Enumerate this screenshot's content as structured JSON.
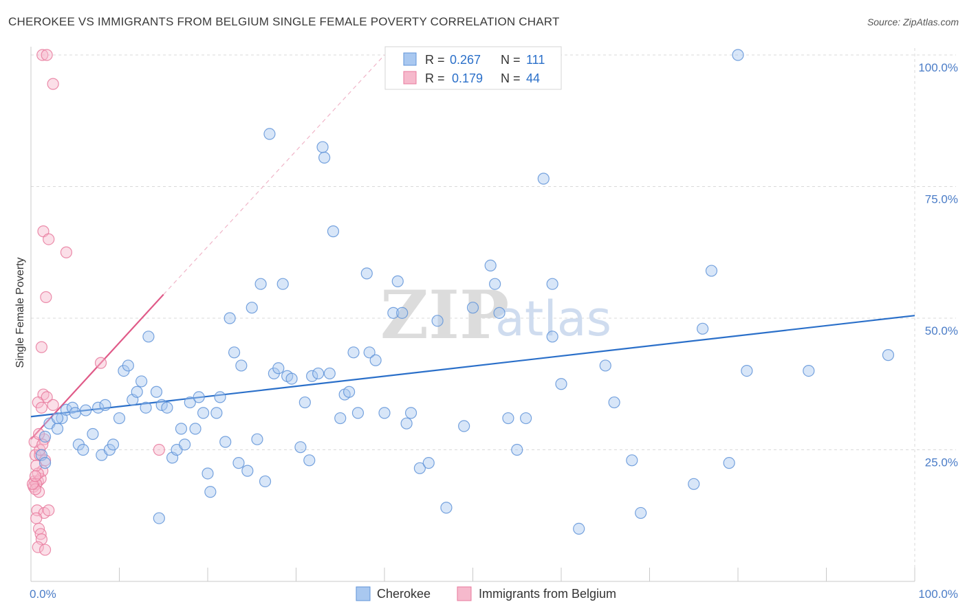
{
  "title": "CHEROKEE VS IMMIGRANTS FROM BELGIUM SINGLE FEMALE POVERTY CORRELATION CHART",
  "source": "Source: ZipAtlas.com",
  "watermark": {
    "zip": "ZIP",
    "atlas": "atlas"
  },
  "colors": {
    "cherokee_fill": "#a9c8f0",
    "cherokee_stroke": "#5f93d8",
    "cherokee_line": "#2a6fc9",
    "belgium_fill": "#f6b9cc",
    "belgium_stroke": "#e8799c",
    "belgium_line": "#e05a88",
    "grid": "#d8d8d8",
    "tick_text": "#4a7cc7"
  },
  "legend": {
    "rows": [
      {
        "r_label": "R = ",
        "r_value": "0.267",
        "n_label": "N = ",
        "n_value": "111"
      },
      {
        "r_label": "R = ",
        "r_value": "0.179",
        "n_label": "N = ",
        "n_value": "44"
      }
    ]
  },
  "chart_data": {
    "type": "scatter",
    "ylabel": "Single Female Poverty",
    "xlim": [
      0,
      100
    ],
    "ylim": [
      0,
      100
    ],
    "x_tick_labels": [
      "0.0%",
      "100.0%"
    ],
    "y_tick_labels": [
      "25.0%",
      "50.0%",
      "75.0%",
      "100.0%"
    ],
    "y_ticks": [
      25,
      50,
      75,
      100
    ],
    "grid": true,
    "legend_position": "top-center",
    "series": [
      {
        "name": "Cherokee",
        "trend": {
          "x0": 0,
          "y0": 31.3,
          "x1": 100,
          "y1": 50.5
        },
        "points": [
          [
            1.2,
            24
          ],
          [
            1.6,
            22.5
          ],
          [
            2.1,
            30
          ],
          [
            3,
            29
          ],
          [
            3.5,
            31
          ],
          [
            4,
            32.6
          ],
          [
            4.7,
            33
          ],
          [
            5,
            32
          ],
          [
            5.4,
            26
          ],
          [
            5.9,
            25
          ],
          [
            6.2,
            32.5
          ],
          [
            7,
            28
          ],
          [
            7.6,
            33
          ],
          [
            8,
            24
          ],
          [
            8.4,
            33.5
          ],
          [
            8.9,
            25
          ],
          [
            9.3,
            26
          ],
          [
            10,
            31
          ],
          [
            10.5,
            40
          ],
          [
            11,
            41
          ],
          [
            11.5,
            34.5
          ],
          [
            12,
            36
          ],
          [
            12.5,
            38
          ],
          [
            13,
            33
          ],
          [
            13.3,
            46.5
          ],
          [
            14.2,
            36
          ],
          [
            14.8,
            33.5
          ],
          [
            15.4,
            33
          ],
          [
            16,
            23.5
          ],
          [
            16.5,
            25
          ],
          [
            17,
            29
          ],
          [
            17.4,
            26
          ],
          [
            18,
            34
          ],
          [
            18.6,
            29
          ],
          [
            19,
            35
          ],
          [
            19.5,
            32
          ],
          [
            20,
            20.5
          ],
          [
            20.3,
            17
          ],
          [
            21,
            32
          ],
          [
            21.4,
            35
          ],
          [
            22,
            26.5
          ],
          [
            22.5,
            50
          ],
          [
            23,
            43.5
          ],
          [
            23.5,
            22.5
          ],
          [
            23.8,
            41
          ],
          [
            24.5,
            21
          ],
          [
            25,
            52
          ],
          [
            25.6,
            27
          ],
          [
            26,
            56.5
          ],
          [
            26.5,
            19
          ],
          [
            27,
            85
          ],
          [
            27.5,
            39.5
          ],
          [
            28,
            40.5
          ],
          [
            28.5,
            56.5
          ],
          [
            29,
            39
          ],
          [
            29.5,
            38.5
          ],
          [
            30.5,
            25.5
          ],
          [
            31,
            34
          ],
          [
            31.5,
            23
          ],
          [
            31.8,
            39
          ],
          [
            32.5,
            39.5
          ],
          [
            33,
            82.5
          ],
          [
            33.2,
            80.5
          ],
          [
            33.8,
            39.5
          ],
          [
            34.2,
            66.5
          ],
          [
            35,
            31
          ],
          [
            35.5,
            35.5
          ],
          [
            36,
            36
          ],
          [
            36.5,
            43.5
          ],
          [
            37,
            32
          ],
          [
            38,
            58.5
          ],
          [
            38.3,
            43.5
          ],
          [
            39,
            42
          ],
          [
            40,
            32
          ],
          [
            41,
            51
          ],
          [
            41.5,
            57
          ],
          [
            42,
            51
          ],
          [
            42.5,
            30
          ],
          [
            43,
            32
          ],
          [
            44,
            21.5
          ],
          [
            45,
            22.5
          ],
          [
            46,
            49.5
          ],
          [
            47,
            14
          ],
          [
            49,
            29.5
          ],
          [
            50,
            52
          ],
          [
            52,
            60
          ],
          [
            52.5,
            56.5
          ],
          [
            53,
            51
          ],
          [
            54,
            31
          ],
          [
            55,
            25
          ],
          [
            56,
            31
          ],
          [
            58,
            76.5
          ],
          [
            59,
            56.5
          ],
          [
            59,
            46.5
          ],
          [
            60,
            37.5
          ],
          [
            62,
            10
          ],
          [
            65,
            41
          ],
          [
            66,
            34
          ],
          [
            68,
            23
          ],
          [
            69,
            13
          ],
          [
            75,
            18.5
          ],
          [
            76,
            48
          ],
          [
            77,
            59
          ],
          [
            79,
            22.5
          ],
          [
            80,
            100
          ],
          [
            81,
            40
          ],
          [
            88,
            40
          ],
          [
            97,
            43
          ],
          [
            14.5,
            12
          ],
          [
            1.6,
            27.5
          ],
          [
            3,
            31
          ]
        ]
      },
      {
        "name": "Immigrants from Belgium",
        "trend": {
          "x0": 0,
          "y0": 27.0,
          "x1": 15,
          "y1": 54.5
        },
        "trend_extension": {
          "x0": 15,
          "y0": 54.5,
          "x1": 40,
          "y1": 100
        },
        "points": [
          [
            1.3,
            100
          ],
          [
            1.8,
            100
          ],
          [
            2.5,
            94.5
          ],
          [
            1.4,
            66.5
          ],
          [
            2,
            65
          ],
          [
            4,
            62.5
          ],
          [
            1.7,
            54
          ],
          [
            1.2,
            44.5
          ],
          [
            1.4,
            35.5
          ],
          [
            1.8,
            35
          ],
          [
            0.8,
            34
          ],
          [
            1.2,
            33
          ],
          [
            2.5,
            33.5
          ],
          [
            0.5,
            24
          ],
          [
            1,
            24
          ],
          [
            1.5,
            27
          ],
          [
            1.6,
            23
          ],
          [
            0.4,
            19
          ],
          [
            0.8,
            19
          ],
          [
            1.1,
            19.5
          ],
          [
            0.3,
            18
          ],
          [
            0.6,
            18.5
          ],
          [
            0.9,
            17
          ],
          [
            0.5,
            17.5
          ],
          [
            0.2,
            18.5
          ],
          [
            1.3,
            21
          ],
          [
            0.7,
            13.5
          ],
          [
            1.5,
            13
          ],
          [
            2,
            13.5
          ],
          [
            0.6,
            12
          ],
          [
            0.9,
            10
          ],
          [
            1.1,
            9
          ],
          [
            1.2,
            8
          ],
          [
            0.8,
            6.5
          ],
          [
            1.6,
            6
          ],
          [
            1,
            25
          ],
          [
            0.8,
            20.5
          ],
          [
            0.6,
            22
          ],
          [
            0.4,
            26.5
          ],
          [
            0.9,
            28
          ],
          [
            7.9,
            41.5
          ],
          [
            14.5,
            25
          ],
          [
            0.5,
            20
          ],
          [
            1.3,
            26
          ]
        ]
      }
    ]
  }
}
